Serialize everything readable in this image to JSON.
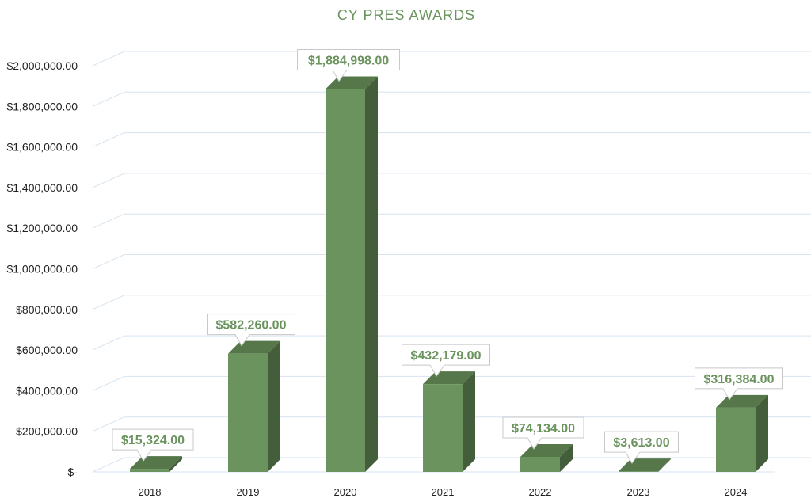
{
  "chart_data": {
    "type": "bar",
    "title": "CY PRES AWARDS",
    "categories": [
      "2018",
      "2019",
      "2020",
      "2021",
      "2022",
      "2023",
      "2024"
    ],
    "values": [
      15324,
      582260,
      1884998,
      432179,
      74134,
      3613,
      316384
    ],
    "data_labels": [
      "$15,324.00",
      "$582,260.00",
      "$1,884,998.00",
      "$432,179.00",
      "$74,134.00",
      "$3,613.00",
      "$316,384.00"
    ],
    "y_tick_labels": [
      "$-",
      "$200,000.00",
      "$400,000.00",
      "$600,000.00",
      "$800,000.00",
      "$1,000,000.00",
      "$1,200,000.00",
      "$1,400,000.00",
      "$1,600,000.00",
      "$1,800,000.00",
      "$2,000,000.00"
    ],
    "ylim": [
      0,
      2000000
    ],
    "xlabel": "",
    "ylabel": "",
    "grid": true,
    "legend": "none",
    "style": "3d-column"
  },
  "colors": {
    "bar_front": "#6a935e",
    "bar_side": "#445e3b",
    "bar_top": "#55774a",
    "title": "#6a935e",
    "label_text": "#6a935e",
    "grid": "#d6e3f0"
  }
}
